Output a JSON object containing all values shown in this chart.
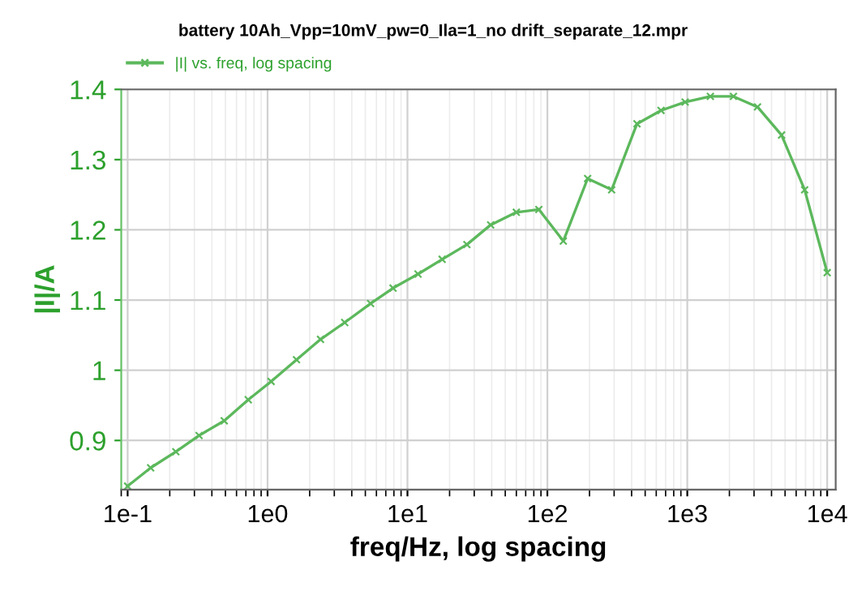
{
  "chart_data": {
    "type": "line",
    "title": "battery 10Ah_Vpp=10mV_pw=0_Ila=1_no drift_separate_12.mpr",
    "xlabel": "freq/Hz, log spacing",
    "ylabel": "|I|/A",
    "log": "x",
    "xlim": [
      0.09,
      11500
    ],
    "ylim": [
      0.83,
      1.4
    ],
    "xticks": [
      {
        "value": 0.1,
        "label": "1e-1"
      },
      {
        "value": 1,
        "label": "1e0"
      },
      {
        "value": 10,
        "label": "1e1"
      },
      {
        "value": 100,
        "label": "1e2"
      },
      {
        "value": 1000,
        "label": "1e3"
      },
      {
        "value": 10000,
        "label": "1e4"
      }
    ],
    "yticks": [
      0.9,
      1,
      1.1,
      1.2,
      1.3,
      1.4
    ],
    "grid": true,
    "legend": "top left",
    "marker": "cross",
    "line_style": "solid",
    "series": [
      {
        "name": "|I| vs. freq, log spacing",
        "color": "#5cb85c",
        "x": [
          0.1,
          0.146,
          0.221,
          0.324,
          0.49,
          0.728,
          1.06,
          1.61,
          2.39,
          3.56,
          5.45,
          7.89,
          11.9,
          17.7,
          26.6,
          39.3,
          60.0,
          86.9,
          130,
          194,
          288,
          437,
          649,
          966,
          1462,
          2138,
          3177,
          4721,
          6902,
          10000
        ],
        "values": [
          0.835,
          0.861,
          0.884,
          0.907,
          0.928,
          0.958,
          0.984,
          1.015,
          1.044,
          1.068,
          1.095,
          1.117,
          1.137,
          1.158,
          1.179,
          1.207,
          1.225,
          1.229,
          1.184,
          1.273,
          1.257,
          1.351,
          1.37,
          1.382,
          1.39,
          1.39,
          1.375,
          1.335,
          1.257,
          1.139
        ]
      }
    ]
  }
}
